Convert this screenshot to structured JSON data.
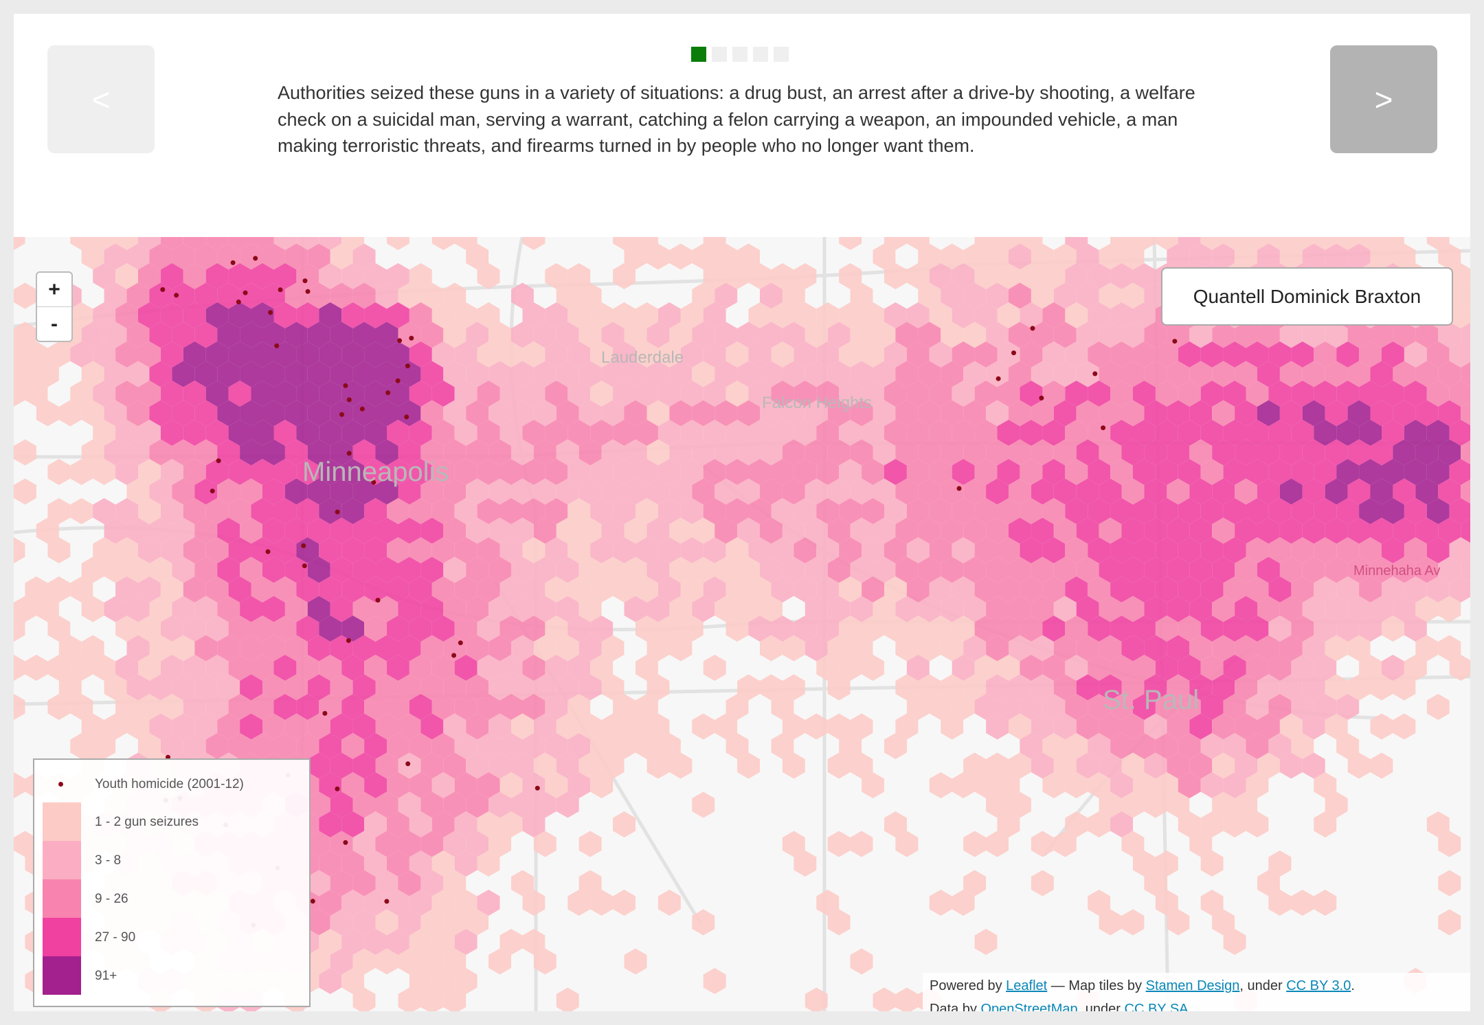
{
  "header": {
    "prev_label": "<",
    "next_label": ">",
    "pagination": {
      "total": 5,
      "current": 1
    },
    "story_text": "Authorities seized these guns in a variety of situations: a drug bust, an arrest after a drive-by shooting, a welfare check on a suicidal man, serving a warrant, catching a felon carrying a weapon, an impounded vehicle, a man making terroristic threats, and firearms turned in by people who no longer want them."
  },
  "map": {
    "zoom_in": "+",
    "zoom_out": "-",
    "selected_name": "Quantell Dominick Braxton",
    "place_labels": {
      "minneapolis": "Minneapolis",
      "st_paul": "St. Paul",
      "lauderdale": "Lauderdale",
      "falcon_heights": "Falcon Heights",
      "minnehaha": "Minnehaha Av"
    },
    "legend": {
      "homicide_label": "Youth homicide (2001-12)",
      "homicide_color": "#8b0a1a",
      "bins": [
        {
          "label": "1 - 2 gun seizures",
          "color": "#fdcbc6"
        },
        {
          "label": "3 - 8",
          "color": "#fbaec3"
        },
        {
          "label": "9 - 26",
          "color": "#f883ae"
        },
        {
          "label": "27 - 90",
          "color": "#f040a0"
        },
        {
          "label": "91+",
          "color": "#a3208f"
        }
      ]
    },
    "attribution": {
      "powered_by": "Powered by ",
      "leaflet": "Leaflet",
      "tiles_by": " — Map tiles by ",
      "stamen": "Stamen Design",
      "under1": ", under ",
      "ccby30": "CC BY 3.0",
      "end1": ".",
      "data_by": "Data by ",
      "osm": "OpenStreetMap",
      "under2": ", under ",
      "ccbysa": "CC BY SA",
      "end2": "."
    }
  }
}
